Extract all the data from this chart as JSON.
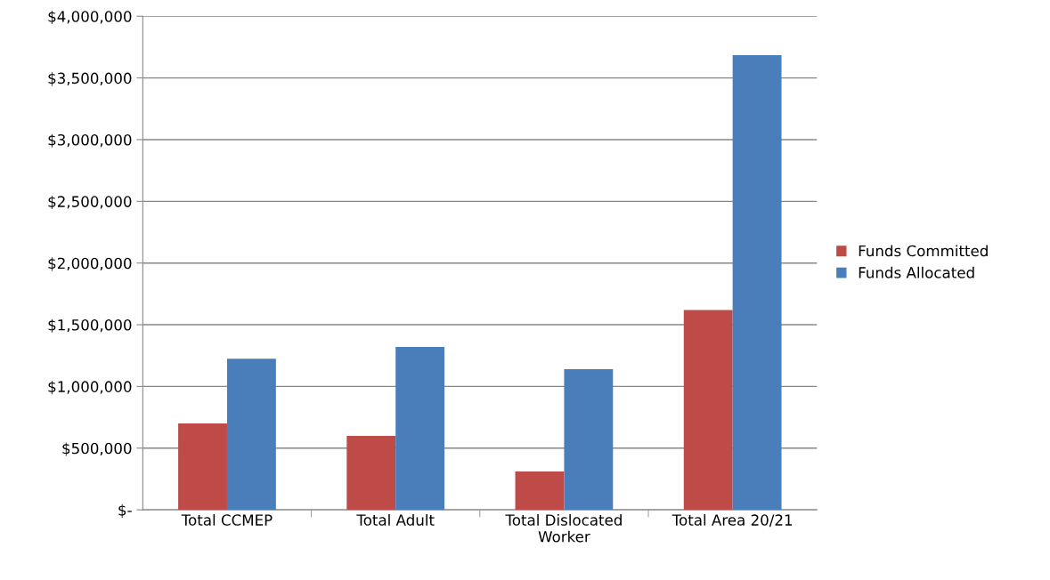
{
  "chart_data": {
    "type": "bar",
    "categories": [
      "Total CCMEP",
      "Total Adult",
      "Total Dislocated\nWorker",
      "Total Area 20/21"
    ],
    "series": [
      {
        "name": "Funds Committed",
        "color": "#be4b48",
        "values": [
          700000,
          600000,
          310000,
          1620000
        ]
      },
      {
        "name": "Funds Allocated",
        "color": "#4a7ebb",
        "values": [
          1225000,
          1320000,
          1140000,
          3685000
        ]
      }
    ],
    "ylim": [
      0,
      4000000
    ],
    "yticks": [
      {
        "value": 0,
        "label": "$-"
      },
      {
        "value": 500000,
        "label": "$500,000"
      },
      {
        "value": 1000000,
        "label": "$1,000,000"
      },
      {
        "value": 1500000,
        "label": "$1,500,000"
      },
      {
        "value": 2000000,
        "label": "$2,000,000"
      },
      {
        "value": 2500000,
        "label": "$2,500,000"
      },
      {
        "value": 3000000,
        "label": "$3,000,000"
      },
      {
        "value": 3500000,
        "label": "$3,500,000"
      },
      {
        "value": 4000000,
        "label": "$4,000,000"
      }
    ],
    "grid": "y",
    "legend": "right"
  }
}
